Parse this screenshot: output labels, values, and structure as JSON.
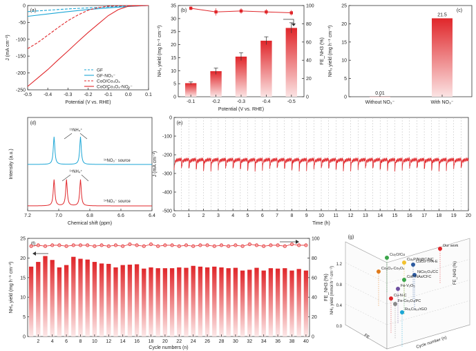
{
  "colors": {
    "red": "#e0262a",
    "red_light": "#f4c2c2",
    "cyan": "#1ba6d6",
    "dashed_red": "#e0262a",
    "grid": "#bbbbbb"
  },
  "chart_data": [
    {
      "panel": "(a)",
      "type": "line",
      "xlabel": "Potential (V vs. RHE)",
      "ylabel": "J (mA cm⁻²)",
      "xlim": [
        -0.5,
        0.1
      ],
      "ylim": [
        -250,
        0
      ],
      "xticks": [
        -0.5,
        -0.4,
        -0.3,
        -0.2,
        -0.1,
        0.0,
        0.1
      ],
      "yticks": [
        0,
        -50,
        -100,
        -150,
        -200,
        -250
      ],
      "legend_position": "bottom-right",
      "series": [
        {
          "name": "GF",
          "style": "dashed",
          "color": "cyan",
          "x": [
            -0.5,
            -0.4,
            -0.3,
            -0.2,
            -0.1,
            0.0,
            0.1
          ],
          "y": [
            -18,
            -14,
            -10,
            -7,
            -4,
            -2,
            0
          ]
        },
        {
          "name": "GF-NO₃⁻",
          "style": "solid",
          "color": "cyan",
          "x": [
            -0.5,
            -0.4,
            -0.3,
            -0.2,
            -0.1,
            0.0,
            0.1
          ],
          "y": [
            -32,
            -25,
            -18,
            -12,
            -7,
            -3,
            0
          ]
        },
        {
          "name": "CoO/Co₃O₄",
          "style": "dashed",
          "color": "red",
          "x": [
            -0.5,
            -0.45,
            -0.4,
            -0.35,
            -0.3,
            -0.25,
            -0.2,
            -0.15,
            -0.1,
            0.0,
            0.1
          ],
          "y": [
            -128,
            -110,
            -88,
            -66,
            -45,
            -28,
            -14,
            -6,
            -2,
            0,
            0
          ]
        },
        {
          "name": "CoO/Co₃O₄-NO₃⁻",
          "style": "solid",
          "color": "red",
          "x": [
            -0.5,
            -0.45,
            -0.4,
            -0.35,
            -0.3,
            -0.25,
            -0.2,
            -0.15,
            -0.1,
            -0.05,
            0.0,
            0.1
          ],
          "y": [
            -240,
            -215,
            -190,
            -162,
            -135,
            -107,
            -80,
            -55,
            -30,
            -12,
            -2,
            0
          ]
        }
      ]
    },
    {
      "panel": "(b)",
      "type": "bar",
      "xlabel": "Potential (V vs. RHE)",
      "ylabel": "NH₃ yield (mg h⁻¹ cm⁻²)",
      "ylabel_right": "FE_NH3 (%)",
      "categories": [
        "-0.1",
        "-0.2",
        "-0.3",
        "-0.4",
        "-0.5"
      ],
      "values": [
        5.2,
        9.8,
        15.4,
        21.5,
        26.4
      ],
      "errors": [
        0.5,
        1.2,
        1.5,
        1.5,
        2.0
      ],
      "ylim": [
        0,
        35
      ],
      "yticks": [
        0,
        5,
        10,
        15,
        20,
        25,
        30,
        35
      ],
      "fe_values": [
        97,
        93,
        94,
        93,
        92
      ],
      "fe_errors": [
        2,
        4,
        3,
        3,
        3
      ],
      "ylim_right": [
        0,
        100
      ],
      "yticks_right": [
        0,
        20,
        40,
        60,
        80,
        100
      ]
    },
    {
      "panel": "(c)",
      "type": "bar",
      "ylabel": "NH₃ yield (mg h⁻¹ cm⁻²)",
      "categories": [
        "Without NO₃⁻",
        "With NO₃⁻"
      ],
      "values": [
        0.01,
        21.5
      ],
      "value_labels": [
        "0.01",
        "21.5"
      ],
      "ylim": [
        0,
        25
      ],
      "yticks": [
        0,
        5,
        10,
        15,
        20,
        25
      ]
    },
    {
      "panel": "(d)",
      "type": "line",
      "xlabel": "Chemical shift (ppm)",
      "ylabel": "Intensity (a.u.)",
      "xlim": [
        7.2,
        6.4
      ],
      "xticks": [
        7.2,
        7.0,
        6.8,
        6.6,
        6.4
      ],
      "series": [
        {
          "name": "¹⁵NO₃⁻ source",
          "color": "cyan",
          "peaks": [
            7.03,
            6.86
          ]
        },
        {
          "name": "¹⁴NO₃⁻ source",
          "color": "red",
          "peaks": [
            7.03,
            6.95,
            6.86
          ]
        }
      ],
      "annotations": [
        "¹⁵NH₄⁺",
        "¹⁴NH₄⁺"
      ]
    },
    {
      "panel": "(e)",
      "type": "line",
      "xlabel": "Time (h)",
      "ylabel": "J (mA cm⁻²)",
      "xlim": [
        0,
        20
      ],
      "ylim": [
        -500,
        0
      ],
      "xticks": [
        0,
        0.5,
        1,
        1.5,
        2,
        2.5,
        3,
        3.5,
        4,
        4.5,
        5,
        5.5,
        6,
        6.5,
        7,
        7.5,
        8,
        8.5,
        9,
        9.5,
        10,
        10.5,
        11,
        11.5,
        12,
        12.5,
        13,
        13.5,
        14,
        14.5,
        15,
        15.5,
        16,
        16.5,
        17,
        17.5,
        18,
        18.5,
        19,
        19.5,
        20
      ],
      "xtick_labels": [
        "0",
        "1",
        "2",
        "3",
        "4",
        "5",
        "6",
        "7",
        "8",
        "9",
        "10",
        "11",
        "12",
        "13",
        "14",
        "15",
        "16",
        "17",
        "18",
        "19",
        "20"
      ],
      "yticks": [
        0,
        -100,
        -200,
        -300,
        -400,
        -500
      ],
      "cycles": 40,
      "baseline": -225
    },
    {
      "panel": "(f)",
      "type": "bar",
      "xlabel": "Cycle numbers (n)",
      "ylabel": "NH₃ yield (mg h⁻¹ cm⁻²)",
      "ylabel_right": "FE_NH3 (%)",
      "xtick_labels": [
        "2",
        "4",
        "6",
        "8",
        "10",
        "12",
        "14",
        "16",
        "18",
        "20",
        "22",
        "24",
        "26",
        "28",
        "30",
        "32",
        "34",
        "36",
        "38",
        "40"
      ],
      "values": [
        17.8,
        19.0,
        20.5,
        19.5,
        17.6,
        18.2,
        20.3,
        19.8,
        19.6,
        19.0,
        18.6,
        18.5,
        17.6,
        18.2,
        18.3,
        18.4,
        17.3,
        17.6,
        17.4,
        17.4,
        17.4,
        17.6,
        17.5,
        18.0,
        17.8,
        17.6,
        17.8,
        17.6,
        17.4,
        17.5,
        16.8,
        17.0,
        17.5,
        16.8,
        17.4,
        17.3,
        17.4,
        16.8,
        17.2,
        16.8
      ],
      "ylim": [
        0,
        25
      ],
      "yticks": [
        0,
        5,
        10,
        15,
        20,
        25
      ],
      "fe_values": [
        92,
        93,
        92,
        93,
        93,
        92,
        93,
        93,
        93,
        92,
        93,
        92,
        93,
        92,
        94,
        93,
        92,
        94,
        92,
        93,
        93,
        92,
        93,
        92,
        93,
        93,
        92,
        93,
        92,
        93,
        92,
        94,
        93,
        92,
        93,
        93,
        92,
        94,
        93,
        93
      ],
      "ylim_right": [
        0,
        100
      ],
      "yticks_right": [
        0,
        20,
        40,
        60,
        80,
        100
      ]
    },
    {
      "panel": "(g)",
      "type": "scatter",
      "zlabel": "FE_NH3 (%)",
      "ylabel": "NH₃ yield (mmol h⁻¹ cm⁻²)",
      "xlabel": "Cycle number (n)",
      "zticks": [
        "0.0",
        "0.4",
        "0.8",
        "1.2"
      ],
      "labels": [
        "Our work",
        "Cu₂O/Cu",
        "Cu₃P/Ni@C/NC",
        "Co₃O₄-Co₃O₄",
        "CuCo-TPA-E",
        "NiCo₂O₄/CC",
        "CoP NAs/CFC",
        "Fe-V₂O₅",
        "Cu-N-C",
        "Fe-Co₃O₄/PC",
        "Ru₁Cu₁₀/rGO"
      ]
    }
  ],
  "labels": {
    "panel_a": "(a)",
    "panel_b": "(b)",
    "panel_c": "(c)",
    "panel_d": "(d)",
    "panel_e": "(e)",
    "panel_f": "(f)",
    "panel_g": "(g)"
  }
}
